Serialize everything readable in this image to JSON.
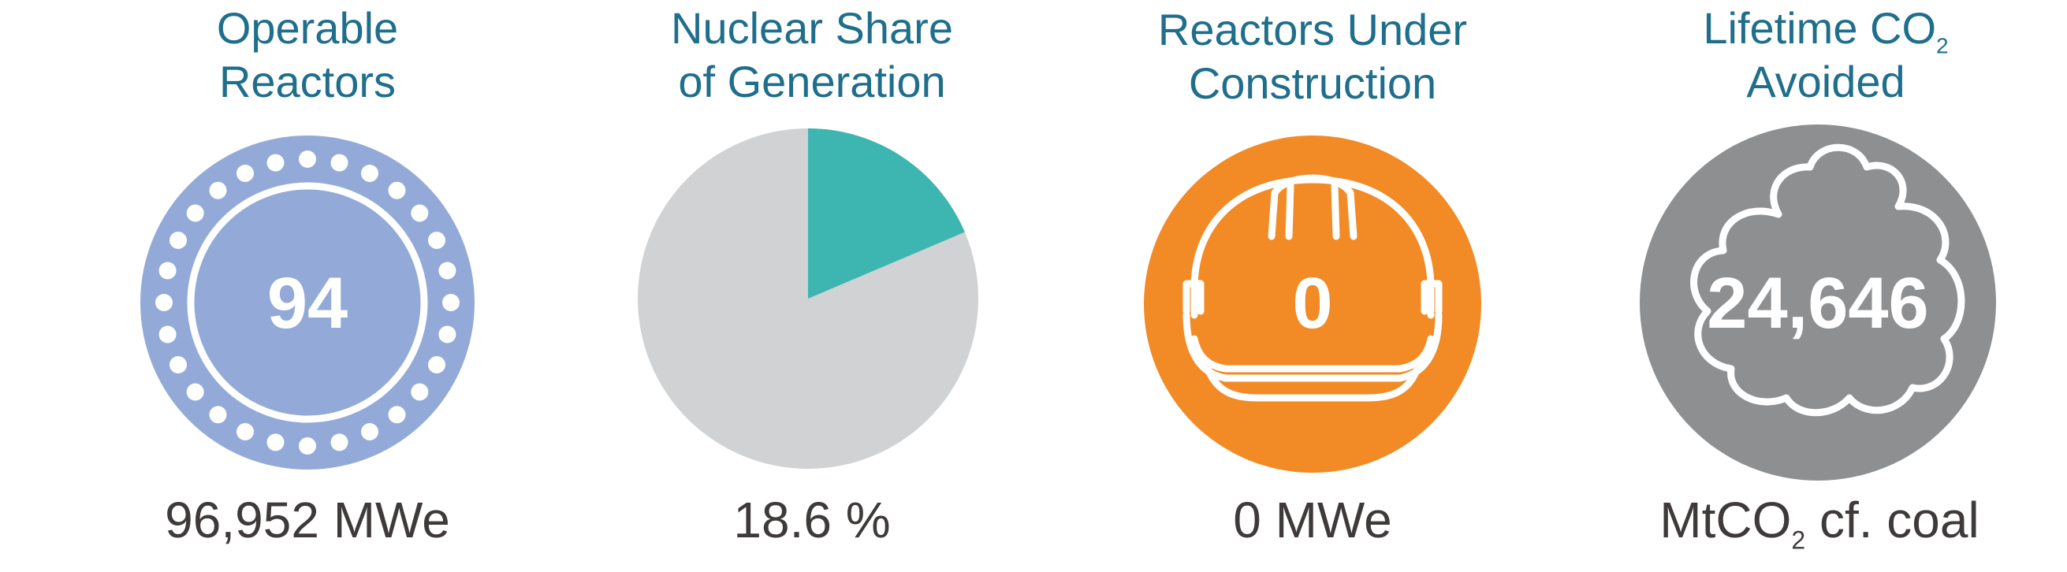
{
  "panels": [
    {
      "title_lines": [
        "Operable",
        "Reactors"
      ],
      "value": "94",
      "caption": "96,952 MWe",
      "icon": "reactor-core-icon",
      "color": "#93aad8"
    },
    {
      "title_lines": [
        "Nuclear Share",
        "of Generation"
      ],
      "caption": "18.6 %",
      "icon": "pie-chart-icon",
      "share_percent": 18.6,
      "colors": {
        "share": "#3db5b0",
        "rest": "#d1d2d4"
      }
    },
    {
      "title_lines": [
        "Reactors Under",
        "Construction"
      ],
      "value": "0",
      "caption": "0 MWe",
      "icon": "hard-hat-icon",
      "color": "#f28a25"
    },
    {
      "title_line1_text": "Lifetime CO",
      "title_line1_sub": "2",
      "title_line2": "Avoided",
      "value": "24,646",
      "caption_prefix": "MtCO",
      "caption_sub": "2",
      "caption_suffix": " cf. coal",
      "icon": "cloud-icon",
      "color": "#8e8f91"
    }
  ],
  "colors": {
    "title": "#1f6e8c",
    "caption": "#3e3a39"
  }
}
